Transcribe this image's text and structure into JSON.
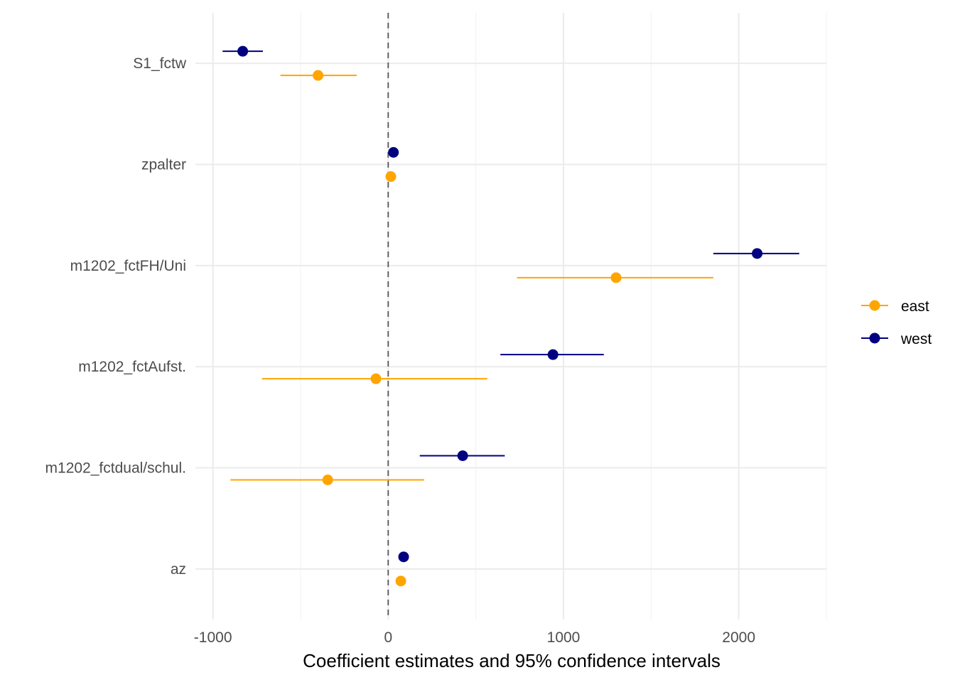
{
  "chart_data": {
    "type": "scatter",
    "subtype": "coefficient-plot-with-error-bars",
    "xlabel": "Coefficient estimates and 95% confidence intervals",
    "ylabel": "",
    "xlim": [
      -1100,
      2500
    ],
    "x_ticks": [
      -1000,
      0,
      1000,
      2000
    ],
    "x_minor_ticks": [
      -500,
      500,
      1500,
      2500
    ],
    "x_tick_labels": [
      "-1000",
      "0",
      "1000",
      "2000"
    ],
    "reference_line_x": 0,
    "categories": [
      "S1_fctw",
      "zpalter",
      "m1202_fctFH/Uni",
      "m1202_fctAufst.",
      "m1202_fctdual/schul.",
      "az"
    ],
    "legend_position": "right",
    "grid": true,
    "series": [
      {
        "name": "east",
        "color": "#FFA500",
        "estimates": [
          -400,
          15,
          1300,
          -70,
          -345,
          72
        ],
        "ci_low": [
          -615,
          -10,
          735,
          -720,
          -900,
          50
        ],
        "ci_high": [
          -180,
          40,
          1855,
          565,
          205,
          95
        ]
      },
      {
        "name": "west",
        "color": "#000080",
        "estimates": [
          -830,
          30,
          2105,
          940,
          425,
          88
        ],
        "ci_low": [
          -945,
          15,
          1855,
          640,
          180,
          70
        ],
        "ci_high": [
          -715,
          45,
          2345,
          1230,
          665,
          105
        ]
      }
    ]
  }
}
